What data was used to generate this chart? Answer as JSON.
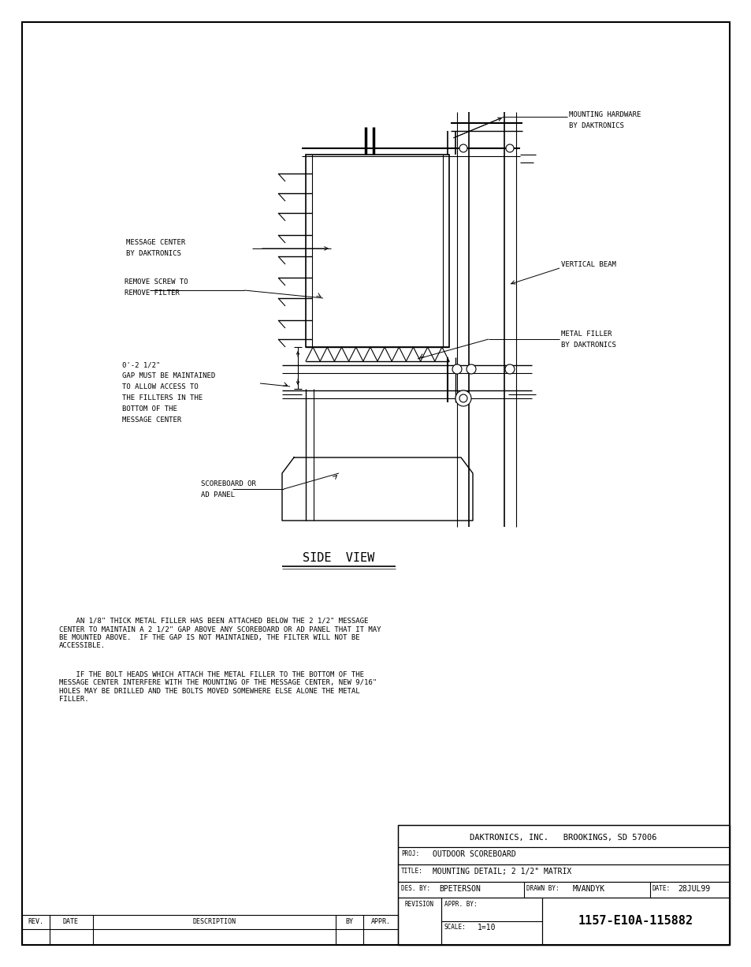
{
  "bg_color": "#ffffff",
  "line_color": "#000000",
  "page_width": 9.54,
  "page_height": 12.26,
  "company": "DAKTRONICS, INC.   BROOKINGS, SD 57006",
  "proj_label": "PROJ:",
  "proj_value": "OUTDOOR SCOREBOARD",
  "title_label": "TITLE:",
  "title_value": "MOUNTING DETAIL; 2 1/2\" MATRIX",
  "des_label": "DES. BY:",
  "des_value": "BPETERSON",
  "drawn_label": "DRAWN BY:",
  "drawn_value": "MVANDYK",
  "date_label": "DATE:",
  "date_value": "28JUL99",
  "scale_label": "SCALE:",
  "scale_value": "1=10",
  "drawing_num": "1157-E10A-115882",
  "rev_label": "REV.",
  "date_col": "DATE",
  "desc_col": "DESCRIPTION",
  "by_col": "BY",
  "appr_col": "APPR.",
  "revision_label": "REVISION",
  "appr_by_label": "APPR. BY:",
  "side_view_label": "SIDE  VIEW",
  "paragraph1": "    AN 1/8\" THICK METAL FILLER HAS BEEN ATTACHED BELOW THE 2 1/2\" MESSAGE\nCENTER TO MAINTAIN A 2 1/2\" GAP ABOVE ANY SCOREBOARD OR AD PANEL THAT IT MAY\nBE MOUNTED ABOVE.  IF THE GAP IS NOT MAINTAINED, THE FILTER WILL NOT BE\nACCESSIBLE.",
  "paragraph2": "    IF THE BOLT HEADS WHICH ATTACH THE METAL FILLER TO THE BOTTOM OF THE\nMESSAGE CENTER INTERFERE WITH THE MOUNTING OF THE MESSAGE CENTER, NEW 9/16\"\nHOLES MAY BE DRILLED AND THE BOLTS MOVED SOMEWHERE ELSE ALONE THE METAL\nFILLER."
}
